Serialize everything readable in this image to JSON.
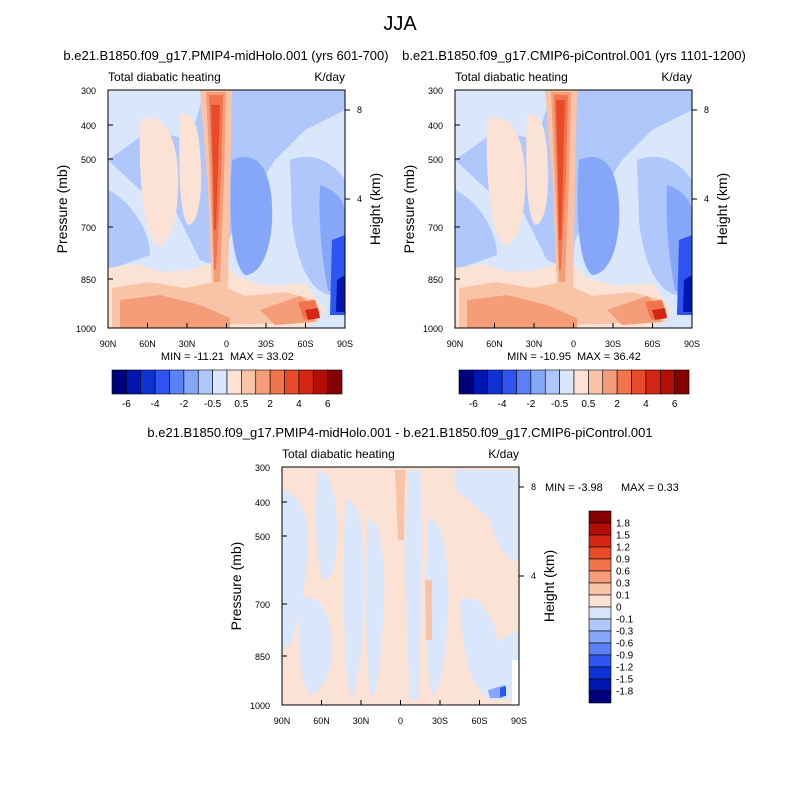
{
  "figure": {
    "title": "JJA"
  },
  "color_scale": {
    "colors": [
      "#00007f",
      "#0016b0",
      "#0d33d6",
      "#2e55ef",
      "#5a80f5",
      "#86a6f9",
      "#b0c7fb",
      "#d9e6fc",
      "#fbe2d4",
      "#f8c3a7",
      "#f59d78",
      "#f1744d",
      "#e94b28",
      "#d42713",
      "#b20e06",
      "#850000"
    ]
  },
  "chart_data": [
    {
      "type": "heatmap",
      "panel": "top-left",
      "title": "b.e21.B1850.f09_g17.PMIP4-midHolo.001 (yrs 601-700)",
      "left_label": "Total diabatic heating",
      "right_label": "K/day",
      "ylabel": "Pressure (mb)",
      "ylabel_right": "Height (km)",
      "x_ticks": [
        "90N",
        "60N",
        "30N",
        "0",
        "30S",
        "60S",
        "90S"
      ],
      "y_ticks": [
        "300",
        "400",
        "500",
        "700",
        "850",
        "1000"
      ],
      "right_ticks": [
        "8",
        "4"
      ],
      "yscale": "log",
      "min_label": "MIN = -11.21",
      "max_label": "MAX =  33.02",
      "colorbar": {
        "orientation": "horizontal",
        "labels": [
          "-6",
          "-4",
          "-2",
          "-0.5",
          "0.5",
          "2",
          "4",
          "6"
        ]
      }
    },
    {
      "type": "heatmap",
      "panel": "top-right",
      "title": "b.e21.B1850.f09_g17.CMIP6-piControl.001 (yrs 1101-1200)",
      "left_label": "Total diabatic heating",
      "right_label": "K/day",
      "ylabel": "Pressure (mb)",
      "ylabel_right": "Height (km)",
      "x_ticks": [
        "90N",
        "60N",
        "30N",
        "0",
        "30S",
        "60S",
        "90S"
      ],
      "y_ticks": [
        "300",
        "400",
        "500",
        "700",
        "850",
        "1000"
      ],
      "right_ticks": [
        "8",
        "4"
      ],
      "yscale": "log",
      "min_label": "MIN = -10.95",
      "max_label": "MAX =  36.42",
      "colorbar": {
        "orientation": "horizontal",
        "labels": [
          "-6",
          "-4",
          "-2",
          "-0.5",
          "0.5",
          "2",
          "4",
          "6"
        ]
      }
    },
    {
      "type": "heatmap",
      "panel": "bottom",
      "title": "b.e21.B1850.f09_g17.PMIP4-midHolo.001 - b.e21.B1850.f09_g17.CMIP6-piControl.001",
      "left_label": "Total diabatic heating",
      "right_label": "K/day",
      "ylabel": "Pressure (mb)",
      "ylabel_right": "Height (km)",
      "x_ticks": [
        "90N",
        "60N",
        "30N",
        "0",
        "30S",
        "60S",
        "90S"
      ],
      "y_ticks": [
        "300",
        "400",
        "500",
        "700",
        "850",
        "1000"
      ],
      "right_ticks": [
        "8",
        "4"
      ],
      "yscale": "log",
      "min_label": "MIN = -3.98",
      "max_label": "MAX =   0.33",
      "colorbar": {
        "orientation": "vertical",
        "labels": [
          "1.8",
          "1.5",
          "1.2",
          "0.9",
          "0.6",
          "0.3",
          "0.1",
          "0",
          "-0.1",
          "-0.3",
          "-0.6",
          "-0.9",
          "-1.2",
          "-1.5",
          "-1.8"
        ]
      }
    }
  ]
}
